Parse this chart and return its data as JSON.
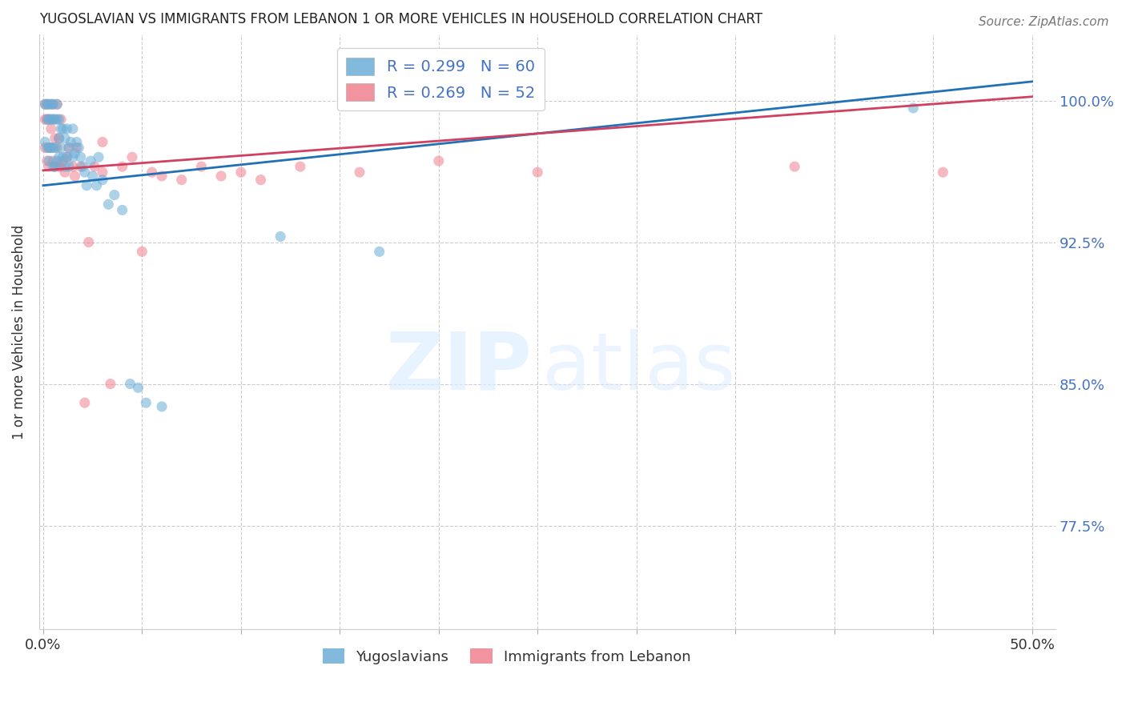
{
  "title": "YUGOSLAVIAN VS IMMIGRANTS FROM LEBANON 1 OR MORE VEHICLES IN HOUSEHOLD CORRELATION CHART",
  "source": "Source: ZipAtlas.com",
  "ylabel": "1 or more Vehicles in Household",
  "ytick_labels": [
    "100.0%",
    "92.5%",
    "85.0%",
    "77.5%"
  ],
  "ytick_values": [
    1.0,
    0.925,
    0.85,
    0.775
  ],
  "ymin": 0.72,
  "ymax": 1.035,
  "xmin": -0.002,
  "xmax": 0.512,
  "yugoslavian_color": "#6baed6",
  "lebanon_color": "#f08090",
  "scatter_alpha": 0.55,
  "scatter_size": 90,
  "r_yug": 0.299,
  "n_yug": 60,
  "r_leb": 0.269,
  "n_leb": 52,
  "line_yug_color": "#2171b5",
  "line_leb_color": "#d04060",
  "yug_x": [
    0.001,
    0.001,
    0.002,
    0.002,
    0.002,
    0.003,
    0.003,
    0.003,
    0.003,
    0.004,
    0.004,
    0.004,
    0.005,
    0.005,
    0.005,
    0.005,
    0.006,
    0.006,
    0.006,
    0.007,
    0.007,
    0.007,
    0.008,
    0.008,
    0.008,
    0.009,
    0.009,
    0.01,
    0.01,
    0.011,
    0.011,
    0.012,
    0.012,
    0.013,
    0.013,
    0.014,
    0.015,
    0.015,
    0.016,
    0.017,
    0.018,
    0.019,
    0.02,
    0.021,
    0.022,
    0.024,
    0.025,
    0.027,
    0.028,
    0.03,
    0.033,
    0.036,
    0.04,
    0.044,
    0.048,
    0.052,
    0.06,
    0.12,
    0.17,
    0.44
  ],
  "yug_y": [
    0.998,
    0.978,
    0.998,
    0.99,
    0.975,
    0.998,
    0.99,
    0.975,
    0.968,
    0.998,
    0.99,
    0.975,
    0.998,
    0.99,
    0.975,
    0.965,
    0.99,
    0.975,
    0.965,
    0.998,
    0.99,
    0.968,
    0.99,
    0.98,
    0.97,
    0.985,
    0.975,
    0.985,
    0.97,
    0.98,
    0.965,
    0.985,
    0.97,
    0.975,
    0.965,
    0.978,
    0.985,
    0.97,
    0.972,
    0.978,
    0.975,
    0.97,
    0.965,
    0.962,
    0.955,
    0.968,
    0.96,
    0.955,
    0.97,
    0.958,
    0.945,
    0.95,
    0.942,
    0.85,
    0.848,
    0.84,
    0.838,
    0.928,
    0.92,
    0.996
  ],
  "leb_x": [
    0.001,
    0.001,
    0.001,
    0.002,
    0.002,
    0.002,
    0.003,
    0.003,
    0.003,
    0.004,
    0.004,
    0.005,
    0.005,
    0.005,
    0.006,
    0.006,
    0.007,
    0.007,
    0.008,
    0.008,
    0.009,
    0.009,
    0.01,
    0.011,
    0.012,
    0.013,
    0.015,
    0.016,
    0.017,
    0.019,
    0.021,
    0.023,
    0.026,
    0.03,
    0.03,
    0.034,
    0.04,
    0.045,
    0.05,
    0.055,
    0.06,
    0.07,
    0.08,
    0.09,
    0.1,
    0.11,
    0.13,
    0.16,
    0.2,
    0.25,
    0.38,
    0.455
  ],
  "leb_y": [
    0.998,
    0.99,
    0.975,
    0.998,
    0.99,
    0.968,
    0.99,
    0.975,
    0.965,
    0.985,
    0.975,
    0.998,
    0.99,
    0.968,
    0.98,
    0.965,
    0.975,
    0.998,
    0.98,
    0.965,
    0.99,
    0.965,
    0.968,
    0.962,
    0.97,
    0.975,
    0.965,
    0.96,
    0.975,
    0.965,
    0.84,
    0.925,
    0.965,
    0.978,
    0.962,
    0.85,
    0.965,
    0.97,
    0.92,
    0.962,
    0.96,
    0.958,
    0.965,
    0.96,
    0.962,
    0.958,
    0.965,
    0.962,
    0.968,
    0.962,
    0.965,
    0.962
  ]
}
